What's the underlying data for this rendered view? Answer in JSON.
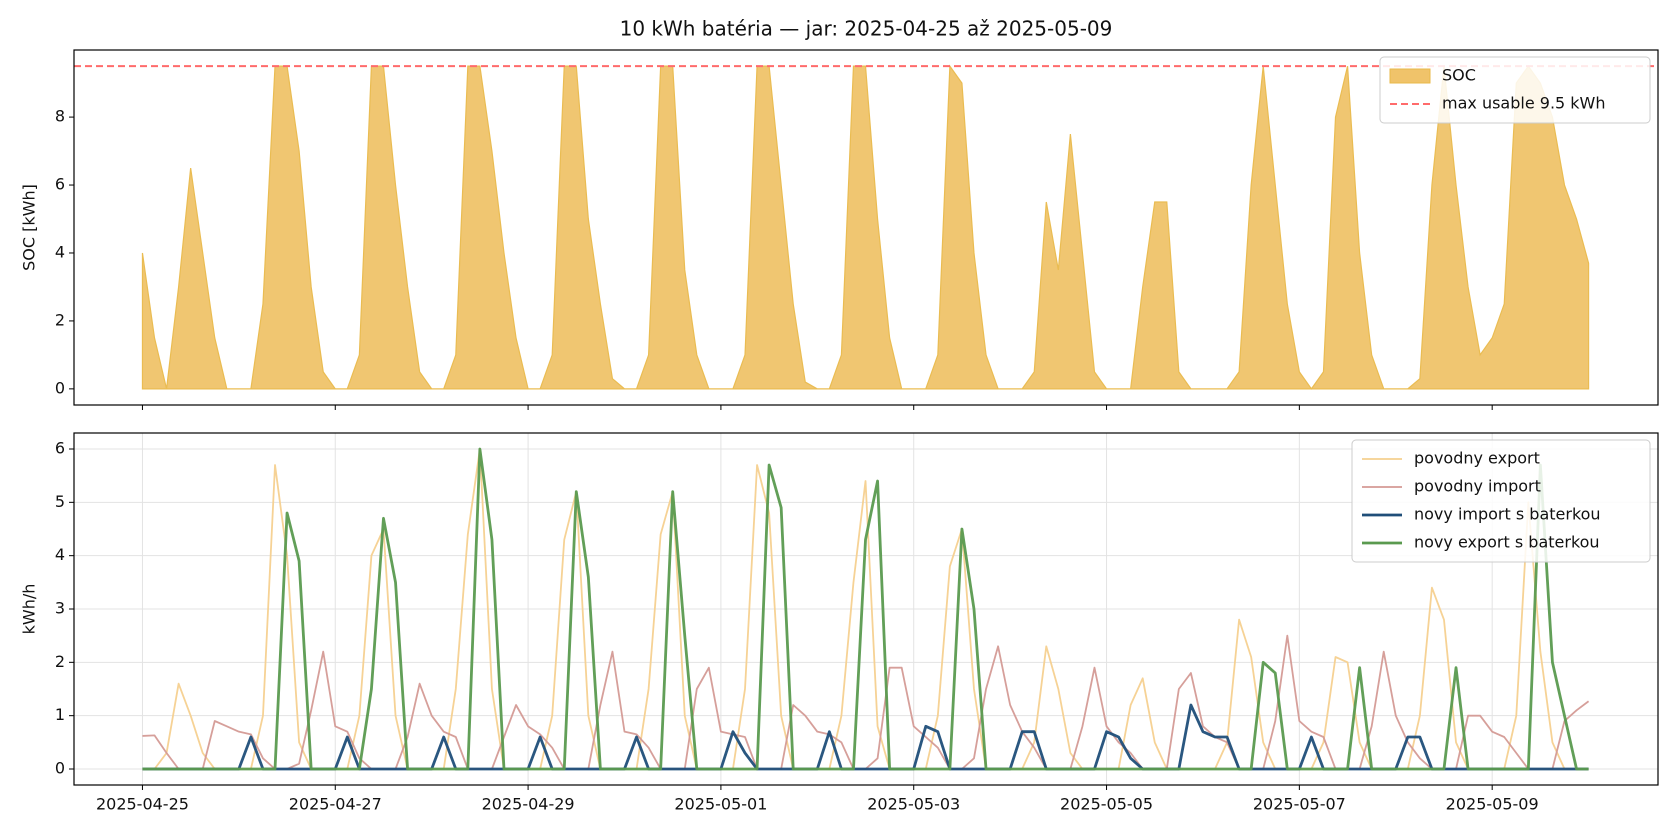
{
  "chart_data": [
    {
      "type": "area",
      "title": "10 kWh batéria — jar: 2025-04-25 až 2025-05-09",
      "ylabel": "SOC [kWh]",
      "x": [
        0,
        0.125,
        0.25,
        0.375,
        0.5,
        0.625,
        0.75,
        0.875,
        1,
        1.125,
        1.25,
        1.375,
        1.5,
        1.625,
        1.75,
        1.875,
        2,
        2.125,
        2.25,
        2.375,
        2.5,
        2.625,
        2.75,
        2.875,
        3,
        3.125,
        3.25,
        3.375,
        3.5,
        3.625,
        3.75,
        3.875,
        4,
        4.125,
        4.25,
        4.375,
        4.5,
        4.625,
        4.75,
        4.875,
        5,
        5.125,
        5.25,
        5.375,
        5.5,
        5.625,
        5.75,
        5.875,
        6,
        6.125,
        6.25,
        6.375,
        6.5,
        6.625,
        6.75,
        6.875,
        7,
        7.125,
        7.25,
        7.375,
        7.5,
        7.625,
        7.75,
        7.875,
        8,
        8.125,
        8.25,
        8.375,
        8.5,
        8.625,
        8.75,
        8.875,
        9,
        9.125,
        9.25,
        9.375,
        9.5,
        9.625,
        9.75,
        9.875,
        10,
        10.125,
        10.25,
        10.375,
        10.5,
        10.625,
        10.75,
        10.875,
        11,
        11.125,
        11.25,
        11.375,
        11.5,
        11.625,
        11.75,
        11.875,
        12,
        12.125,
        12.25,
        12.375,
        12.5,
        12.625,
        12.75,
        12.875,
        13,
        13.125,
        13.25,
        13.375,
        13.5,
        13.625,
        13.75,
        13.875,
        14,
        14.125,
        14.25,
        14.375,
        14.5,
        14.625,
        14.75,
        14.875,
        15
      ],
      "series": [
        {
          "name": "SOC",
          "color": "#f0c36a",
          "values": [
            4.0,
            1.5,
            0,
            3.0,
            6.5,
            4.0,
            1.5,
            0,
            0,
            0,
            2.5,
            9.5,
            9.5,
            7.0,
            3.0,
            0.5,
            0,
            0,
            1.0,
            9.5,
            9.5,
            6.0,
            3.0,
            0.5,
            0,
            0,
            1.0,
            9.5,
            9.5,
            7.0,
            4.0,
            1.5,
            0,
            0,
            1.0,
            9.5,
            9.5,
            5.0,
            2.5,
            0.3,
            0,
            0,
            1.0,
            9.5,
            9.5,
            3.5,
            1.0,
            0,
            0,
            0,
            1.0,
            9.5,
            9.5,
            6.0,
            2.5,
            0.2,
            0,
            0,
            1.0,
            9.5,
            9.5,
            5.0,
            1.5,
            0,
            0,
            0,
            1.0,
            9.5,
            9.0,
            4.0,
            1.0,
            0,
            0,
            0,
            0.5,
            5.5,
            3.5,
            7.5,
            4.0,
            0.5,
            0,
            0,
            0,
            3.0,
            5.5,
            5.5,
            0.5,
            0,
            0,
            0,
            0,
            0.5,
            6.0,
            9.5,
            6.0,
            2.5,
            0.5,
            0,
            0.5,
            8.0,
            9.5,
            4.0,
            1.0,
            0,
            0,
            0,
            0.3,
            6.0,
            9.5,
            6.0,
            3.0,
            1.0,
            1.5,
            2.5,
            9.0,
            9.5,
            9.0,
            8.0,
            6.0,
            5.0,
            3.7
          ]
        }
      ],
      "hlines": [
        {
          "value": 9.5,
          "label": "max usable 9.5 kWh",
          "color": "#ff6b6b"
        }
      ],
      "xlim": [
        -0.71,
        15.72
      ],
      "xticks": [
        0,
        2,
        4,
        6,
        8,
        10,
        12,
        14
      ],
      "ylim": [
        -0.475,
        9.975
      ],
      "yticks": [
        0,
        2,
        4,
        6,
        8
      ],
      "grid": false,
      "legend": "upper right"
    },
    {
      "type": "line",
      "ylabel": "kWh/h",
      "x": [
        0,
        0.125,
        0.25,
        0.375,
        0.5,
        0.625,
        0.75,
        0.875,
        1,
        1.125,
        1.25,
        1.375,
        1.5,
        1.625,
        1.75,
        1.875,
        2,
        2.125,
        2.25,
        2.375,
        2.5,
        2.625,
        2.75,
        2.875,
        3,
        3.125,
        3.25,
        3.375,
        3.5,
        3.625,
        3.75,
        3.875,
        4,
        4.125,
        4.25,
        4.375,
        4.5,
        4.625,
        4.75,
        4.875,
        5,
        5.125,
        5.25,
        5.375,
        5.5,
        5.625,
        5.75,
        5.875,
        6,
        6.125,
        6.25,
        6.375,
        6.5,
        6.625,
        6.75,
        6.875,
        7,
        7.125,
        7.25,
        7.375,
        7.5,
        7.625,
        7.75,
        7.875,
        8,
        8.125,
        8.25,
        8.375,
        8.5,
        8.625,
        8.75,
        8.875,
        9,
        9.125,
        9.25,
        9.375,
        9.5,
        9.625,
        9.75,
        9.875,
        10,
        10.125,
        10.25,
        10.375,
        10.5,
        10.625,
        10.75,
        10.875,
        11,
        11.125,
        11.25,
        11.375,
        11.5,
        11.625,
        11.75,
        11.875,
        12,
        12.125,
        12.25,
        12.375,
        12.5,
        12.625,
        12.75,
        12.875,
        13,
        13.125,
        13.25,
        13.375,
        13.5,
        13.625,
        13.75,
        13.875,
        14,
        14.125,
        14.25,
        14.375,
        14.5,
        14.625,
        14.75,
        14.875,
        15
      ],
      "series": [
        {
          "name": "povodny export",
          "color": "#f5d08f",
          "values": [
            0,
            0,
            0.3,
            1.6,
            1.0,
            0.3,
            0,
            0,
            0,
            0,
            1.0,
            5.7,
            4.0,
            0.5,
            0,
            0,
            0,
            0,
            1.0,
            4.0,
            4.5,
            1.0,
            0,
            0,
            0,
            0,
            1.5,
            4.4,
            6.0,
            1.5,
            0,
            0,
            0,
            0,
            1.0,
            4.3,
            5.2,
            1.0,
            0,
            0,
            0,
            0,
            1.5,
            4.4,
            5.2,
            1.0,
            0,
            0,
            0,
            0,
            1.5,
            5.7,
            4.8,
            1.0,
            0,
            0,
            0,
            0,
            1.0,
            3.5,
            5.4,
            0.8,
            0,
            0,
            0,
            0,
            1.0,
            3.8,
            4.5,
            1.5,
            0,
            0,
            0,
            0,
            0.5,
            2.3,
            1.5,
            0.3,
            0,
            0,
            0,
            0,
            1.2,
            1.7,
            0.5,
            0,
            0,
            0,
            0,
            0,
            0.5,
            2.8,
            2.1,
            0.5,
            0,
            0,
            0,
            0,
            0.5,
            2.1,
            2.0,
            0.5,
            0,
            0,
            0,
            0,
            1.0,
            3.4,
            2.8,
            0.5,
            0,
            0,
            0,
            0,
            1.0,
            5.0,
            2.2,
            0.5,
            0,
            0,
            0
          ]
        },
        {
          "name": "povodny import",
          "color": "#d49a95",
          "values": [
            0.62,
            0.63,
            0.3,
            0,
            0,
            0,
            0.9,
            0.8,
            0.7,
            0.65,
            0.2,
            0,
            0,
            0.1,
            1.1,
            2.2,
            0.8,
            0.7,
            0.2,
            0,
            0,
            0,
            0.6,
            1.6,
            1.0,
            0.7,
            0.6,
            0,
            0,
            0,
            0.6,
            1.2,
            0.8,
            0.65,
            0.4,
            0,
            0,
            0,
            1.2,
            2.2,
            0.7,
            0.65,
            0.4,
            0,
            0,
            0,
            1.5,
            1.9,
            0.7,
            0.65,
            0.6,
            0,
            0,
            0,
            1.2,
            1.0,
            0.7,
            0.65,
            0.5,
            0,
            0,
            0.2,
            1.9,
            1.9,
            0.8,
            0.6,
            0.4,
            0,
            0,
            0.2,
            1.5,
            2.3,
            1.2,
            0.7,
            0.4,
            0,
            0,
            0,
            0.8,
            1.9,
            0.8,
            0.5,
            0.3,
            0,
            0,
            0,
            1.5,
            1.8,
            0.8,
            0.6,
            0.5,
            0,
            0,
            0,
            0.9,
            2.5,
            0.9,
            0.7,
            0.6,
            0,
            0,
            0,
            0.8,
            2.2,
            1.0,
            0.5,
            0.2,
            0,
            0,
            0,
            1.0,
            1.0,
            0.7,
            0.6,
            0.3,
            0,
            0,
            0,
            0.9,
            1.1,
            1.27
          ]
        },
        {
          "name": "novy import s baterkou",
          "color": "#1f4e79",
          "values": [
            0,
            0,
            0,
            0,
            0,
            0,
            0,
            0,
            0,
            0.6,
            0,
            0,
            0,
            0,
            0,
            0,
            0,
            0.6,
            0,
            0,
            0,
            0,
            0,
            0,
            0,
            0.6,
            0,
            0,
            0,
            0,
            0,
            0,
            0,
            0.6,
            0,
            0,
            0,
            0,
            0,
            0,
            0,
            0.6,
            0,
            0,
            0,
            0,
            0,
            0,
            0,
            0.7,
            0.3,
            0,
            0,
            0,
            0,
            0,
            0,
            0.7,
            0,
            0,
            0,
            0,
            0,
            0,
            0,
            0.8,
            0.7,
            0,
            0,
            0,
            0,
            0,
            0,
            0.7,
            0.7,
            0,
            0,
            0,
            0,
            0,
            0.7,
            0.6,
            0.2,
            0,
            0,
            0,
            0,
            1.2,
            0.7,
            0.6,
            0.6,
            0,
            0,
            0,
            0,
            0,
            0,
            0.6,
            0,
            0,
            0,
            0,
            0,
            0,
            0,
            0.6,
            0.6,
            0,
            0,
            0,
            0,
            0,
            0,
            0,
            0,
            0,
            0,
            0,
            0,
            0,
            0
          ]
        },
        {
          "name": "novy export s baterkou",
          "color": "#5a9a4f",
          "values": [
            0,
            0,
            0,
            0,
            0,
            0,
            0,
            0,
            0,
            0,
            0,
            0,
            4.8,
            3.9,
            0,
            0,
            0,
            0,
            0,
            1.5,
            4.7,
            3.5,
            0,
            0,
            0,
            0,
            0,
            0,
            6.0,
            4.3,
            0,
            0,
            0,
            0,
            0,
            0,
            5.2,
            3.6,
            0,
            0,
            0,
            0,
            0,
            0,
            5.2,
            2.5,
            0,
            0,
            0,
            0,
            0,
            0,
            5.7,
            4.9,
            0,
            0,
            0,
            0,
            0,
            0,
            4.3,
            5.4,
            0,
            0,
            0,
            0,
            0,
            0,
            4.5,
            3.0,
            0,
            0,
            0,
            0,
            0,
            0,
            0,
            0,
            0,
            0,
            0,
            0,
            0,
            0,
            0,
            0,
            0,
            0,
            0,
            0,
            0,
            0,
            0,
            2.0,
            1.8,
            0,
            0,
            0,
            0,
            0,
            0,
            1.9,
            0,
            0,
            0,
            0,
            0,
            0,
            0,
            1.9,
            0,
            0,
            0,
            0,
            0,
            0,
            5.7,
            2.0,
            1.0,
            0,
            0
          ]
        }
      ],
      "xlim": [
        -0.71,
        15.72
      ],
      "xticks": [
        {
          "value": 0,
          "label": "2025-04-25"
        },
        {
          "value": 2,
          "label": "2025-04-27"
        },
        {
          "value": 4,
          "label": "2025-04-29"
        },
        {
          "value": 6,
          "label": "2025-05-01"
        },
        {
          "value": 8,
          "label": "2025-05-03"
        },
        {
          "value": 10,
          "label": "2025-05-05"
        },
        {
          "value": 12,
          "label": "2025-05-07"
        },
        {
          "value": 14,
          "label": "2025-05-09"
        }
      ],
      "ylim": [
        -0.3,
        6.3
      ],
      "yticks": [
        0,
        1,
        2,
        3,
        4,
        5,
        6
      ],
      "grid": true,
      "legend": "upper right"
    }
  ]
}
